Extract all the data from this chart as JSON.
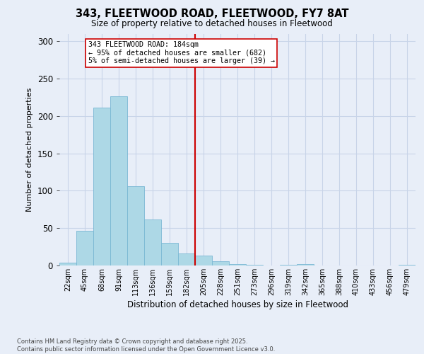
{
  "title": "343, FLEETWOOD ROAD, FLEETWOOD, FY7 8AT",
  "subtitle": "Size of property relative to detached houses in Fleetwood",
  "xlabel": "Distribution of detached houses by size in Fleetwood",
  "ylabel": "Number of detached properties",
  "bin_labels": [
    "22sqm",
    "45sqm",
    "68sqm",
    "91sqm",
    "113sqm",
    "136sqm",
    "159sqm",
    "182sqm",
    "205sqm",
    "228sqm",
    "251sqm",
    "273sqm",
    "296sqm",
    "319sqm",
    "342sqm",
    "365sqm",
    "388sqm",
    "410sqm",
    "433sqm",
    "456sqm",
    "479sqm"
  ],
  "bar_heights": [
    4,
    46,
    211,
    226,
    106,
    62,
    30,
    16,
    13,
    6,
    2,
    1,
    0,
    1,
    2,
    0,
    0,
    0,
    0,
    0,
    1
  ],
  "bar_color": "#add8e6",
  "bar_edge_color": "#7ab8d4",
  "grid_color": "#c8d4e8",
  "background_color": "#e8eef8",
  "vline_x": 7.5,
  "vline_color": "#cc0000",
  "annotation_text": "343 FLEETWOOD ROAD: 184sqm\n← 95% of detached houses are smaller (682)\n5% of semi-detached houses are larger (39) →",
  "annotation_box_color": "#ffffff",
  "annotation_box_edge": "#cc0000",
  "ylim": [
    0,
    310
  ],
  "yticks": [
    0,
    50,
    100,
    150,
    200,
    250,
    300
  ],
  "footer": "Contains HM Land Registry data © Crown copyright and database right 2025.\nContains public sector information licensed under the Open Government Licence v3.0."
}
